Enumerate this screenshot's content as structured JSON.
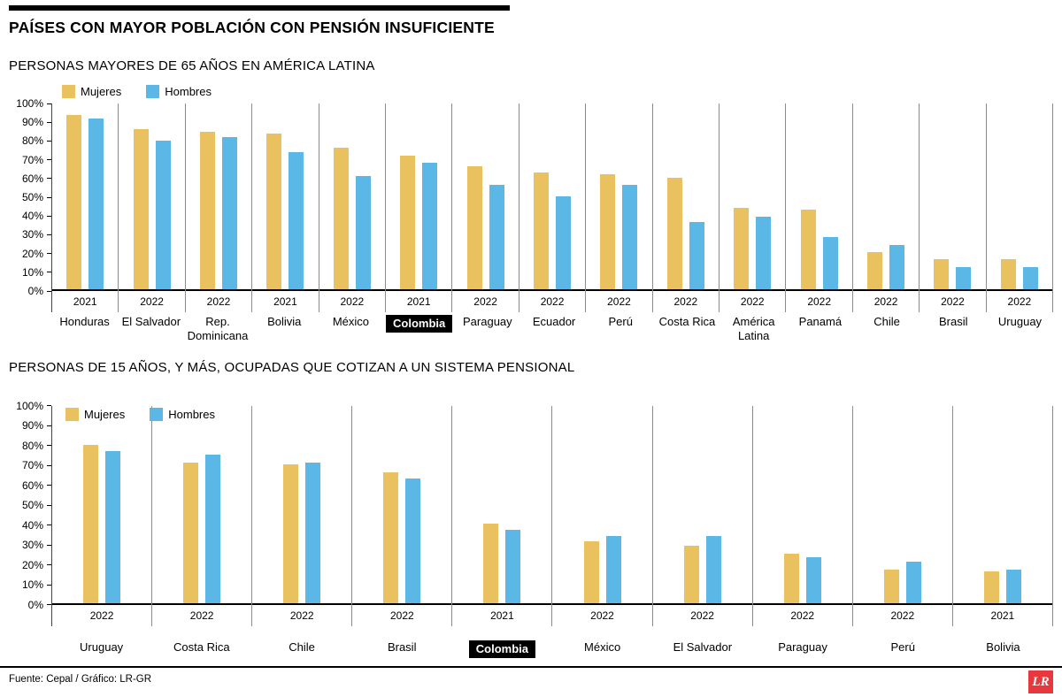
{
  "header": {
    "title": "PAÍSES CON MAYOR POBLACIÓN CON PENSIÓN INSUFICIENTE"
  },
  "legend": {
    "items": [
      {
        "label": "Mujeres",
        "color": "#E9C25F"
      },
      {
        "label": "Hombres",
        "color": "#5BB7E5"
      }
    ]
  },
  "footer": {
    "source": "Fuente: Cepal / Gráfico: LR-GR",
    "logo": "LR"
  },
  "chart_data": [
    {
      "type": "bar",
      "title": "PERSONAS MAYORES DE 65 AÑOS EN AMÉRICA LATINA",
      "ylim": [
        0,
        100
      ],
      "ytick_step": 10,
      "ytick_suffix": "%",
      "grid": false,
      "legend_position": "above-left",
      "highlighted_category": "Colombia",
      "categories": [
        "Honduras",
        "El Salvador",
        "Rep. Dominicana",
        "Bolivia",
        "México",
        "Colombia",
        "Paraguay",
        "Ecuador",
        "Perú",
        "Costa Rica",
        "América Latina",
        "Panamá",
        "Chile",
        "Brasil",
        "Uruguay"
      ],
      "years": [
        "2021",
        "2022",
        "2022",
        "2021",
        "2022",
        "2021",
        "2022",
        "2022",
        "2022",
        "2022",
        "2022",
        "2022",
        "2022",
        "2022",
        "2022"
      ],
      "series": [
        {
          "name": "Mujeres",
          "values": [
            94,
            86,
            85,
            84,
            76,
            72,
            66,
            63,
            62,
            60,
            44,
            43,
            20,
            16,
            16
          ]
        },
        {
          "name": "Hombres",
          "values": [
            92,
            80,
            82,
            74,
            61,
            68,
            56,
            50,
            56,
            36,
            39,
            28,
            24,
            12,
            12
          ]
        }
      ]
    },
    {
      "type": "bar",
      "title": "PERSONAS DE 15 AÑOS, Y MÁS, OCUPADAS QUE COTIZAN A UN SISTEMA PENSIONAL",
      "ylim": [
        0,
        100
      ],
      "ytick_step": 10,
      "ytick_suffix": "%",
      "grid": false,
      "legend_position": "inside-top-left",
      "highlighted_category": "Colombia",
      "categories": [
        "Uruguay",
        "Costa Rica",
        "Chile",
        "Brasil",
        "Colombia",
        "México",
        "El Salvador",
        "Paraguay",
        "Perú",
        "Bolivia"
      ],
      "years": [
        "2022",
        "2022",
        "2022",
        "2022",
        "2021",
        "2022",
        "2022",
        "2022",
        "2022",
        "2021"
      ],
      "series": [
        {
          "name": "Mujeres",
          "values": [
            80,
            71,
            70,
            66,
            40,
            31,
            29,
            25,
            17,
            16
          ]
        },
        {
          "name": "Hombres",
          "values": [
            77,
            75,
            71,
            63,
            37,
            34,
            34,
            23,
            21,
            17
          ]
        }
      ]
    }
  ]
}
